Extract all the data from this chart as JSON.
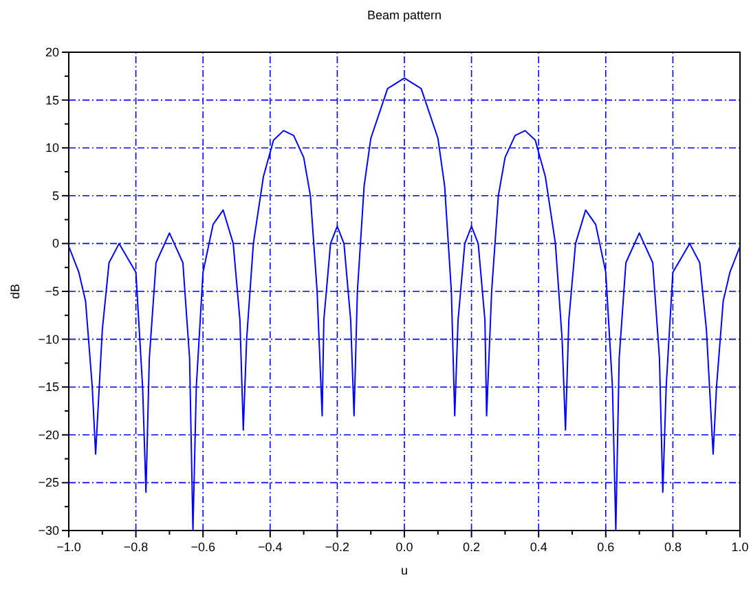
{
  "chart_data": {
    "type": "line",
    "title": "Beam pattern",
    "xlabel": "u",
    "ylabel": "dB",
    "grid": true,
    "line_style": "solid",
    "marker": "none",
    "xlim": [
      -1,
      1
    ],
    "ylim": [
      -30,
      20
    ],
    "xticks": [
      {
        "value": -1,
        "label": "−1.0"
      },
      {
        "value": -0.9,
        "label": null
      },
      {
        "value": -0.8,
        "label": "−0.8"
      },
      {
        "value": -0.7,
        "label": null
      },
      {
        "value": -0.6,
        "label": "−0.6"
      },
      {
        "value": -0.5,
        "label": null
      },
      {
        "value": -0.4,
        "label": "−0.4"
      },
      {
        "value": -0.3,
        "label": null
      },
      {
        "value": -0.2,
        "label": "−0.2"
      },
      {
        "value": -0.1,
        "label": null
      },
      {
        "value": 0,
        "label": "0.0"
      },
      {
        "value": 0.1,
        "label": null
      },
      {
        "value": 0.2,
        "label": "0.2"
      },
      {
        "value": 0.3,
        "label": null
      },
      {
        "value": 0.4,
        "label": "0.4"
      },
      {
        "value": 0.5,
        "label": null
      },
      {
        "value": 0.6,
        "label": "0.6"
      },
      {
        "value": 0.7,
        "label": null
      },
      {
        "value": 0.8,
        "label": "0.8"
      },
      {
        "value": 0.9,
        "label": null
      },
      {
        "value": 1,
        "label": "1.0"
      }
    ],
    "yticks": [
      {
        "value": -30,
        "label": "−30"
      },
      {
        "value": -27.5,
        "label": null
      },
      {
        "value": -25,
        "label": "−25"
      },
      {
        "value": -22.5,
        "label": null
      },
      {
        "value": -20,
        "label": "−20"
      },
      {
        "value": -17.5,
        "label": null
      },
      {
        "value": -15,
        "label": "−15"
      },
      {
        "value": -12.5,
        "label": null
      },
      {
        "value": -10,
        "label": "−10"
      },
      {
        "value": -7.5,
        "label": null
      },
      {
        "value": -5,
        "label": "−5"
      },
      {
        "value": -2.5,
        "label": null
      },
      0,
      {
        "value": 2.5,
        "label": null
      },
      5,
      {
        "value": 7.5,
        "label": null
      },
      10,
      {
        "value": 12.5,
        "label": null
      },
      15,
      {
        "value": 17.5,
        "label": null
      },
      20
    ],
    "series": [
      {
        "color": "#0000ff",
        "x": [
          -1,
          -0.97,
          -0.95,
          -0.93,
          -0.92,
          -0.9,
          -0.88,
          -0.85,
          -0.8,
          -0.78,
          -0.77,
          -0.76,
          -0.74,
          -0.7,
          -0.66,
          -0.64,
          -0.63,
          -0.62,
          -0.6,
          -0.57,
          -0.54,
          -0.51,
          -0.49,
          -0.48,
          -0.47,
          -0.45,
          -0.42,
          -0.39,
          -0.36,
          -0.33,
          -0.3,
          -0.28,
          -0.26,
          -0.245,
          -0.24,
          -0.22,
          -0.2,
          -0.18,
          -0.16,
          -0.15,
          -0.14,
          -0.12,
          -0.1,
          -0.05,
          0,
          0.05,
          0.1,
          0.12,
          0.14,
          0.15,
          0.16,
          0.18,
          0.2,
          0.22,
          0.24,
          0.245,
          0.26,
          0.28,
          0.3,
          0.33,
          0.36,
          0.39,
          0.42,
          0.45,
          0.47,
          0.48,
          0.49,
          0.51,
          0.54,
          0.57,
          0.6,
          0.62,
          0.63,
          0.64,
          0.66,
          0.7,
          0.74,
          0.76,
          0.77,
          0.78,
          0.8,
          0.85,
          0.88,
          0.9,
          0.92,
          0.93,
          0.95,
          0.97,
          1
        ],
        "values": [
          -0.3,
          -3,
          -6,
          -15,
          -22,
          -9,
          -2,
          0,
          -3,
          -15,
          -26,
          -12,
          -2,
          1.1,
          -2,
          -12,
          -30,
          -15,
          -3,
          2,
          3.5,
          0,
          -8,
          -19.5,
          -10,
          0,
          7,
          10.8,
          11.8,
          11.3,
          9,
          5,
          -5,
          -18,
          -8,
          0,
          1.8,
          0,
          -8,
          -18,
          -5,
          6,
          11,
          16.2,
          17.3,
          16.2,
          11,
          6,
          -5,
          -18,
          -8,
          0,
          1.8,
          0,
          -8,
          -18,
          -5,
          5,
          9,
          11.3,
          11.8,
          10.8,
          7,
          0,
          -10,
          -19.5,
          -8,
          0,
          3.5,
          2,
          -3,
          -15,
          -30,
          -12,
          -2,
          1.1,
          -2,
          -12,
          -26,
          -15,
          -3,
          0,
          -2,
          -9,
          -22,
          -15,
          -6,
          -3,
          -0.3
        ]
      }
    ]
  }
}
